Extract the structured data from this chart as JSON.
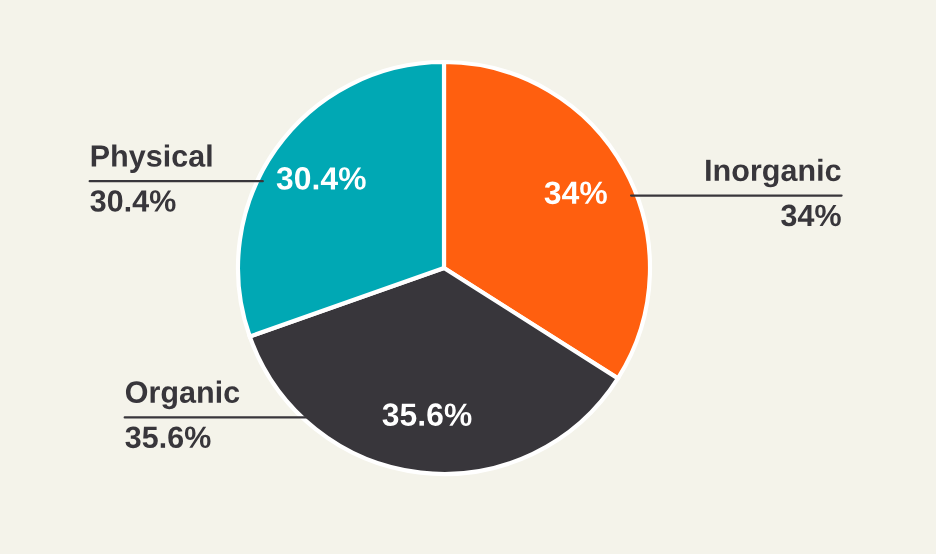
{
  "chart_data": {
    "type": "pie",
    "categories": [
      "Inorganic",
      "Organic",
      "Physical"
    ],
    "values": [
      34,
      35.6,
      30.4
    ],
    "colors": [
      "#ff5f0f",
      "#38363b",
      "#00a8b4"
    ],
    "value_labels": [
      "34%",
      "35.6%",
      "30.4%"
    ],
    "legend": false
  }
}
